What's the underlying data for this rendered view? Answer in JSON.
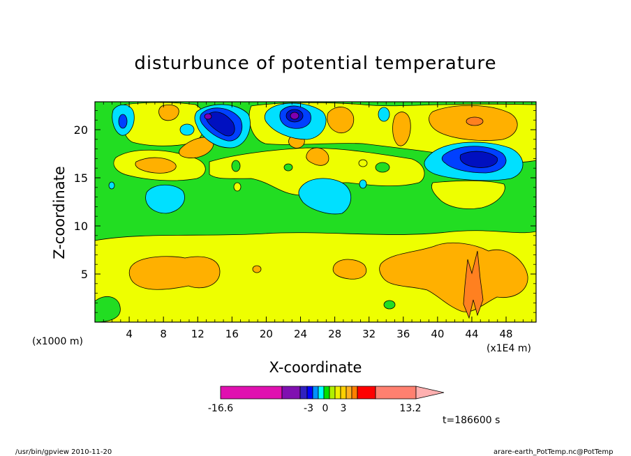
{
  "chart_data": {
    "type": "heatmap",
    "title": "disturbunce of potential temperature",
    "xlabel": "X-coordinate",
    "ylabel": "Z-coordinate",
    "x_scale_label": "(x1000 m)",
    "x_unit_label": "(x1E4 m)",
    "xticks": [
      "4",
      "8",
      "12",
      "16",
      "20",
      "24",
      "28",
      "32",
      "36",
      "40",
      "44",
      "48"
    ],
    "yticks": [
      "5",
      "10",
      "15",
      "20"
    ],
    "xlim": [
      0,
      51.5
    ],
    "ylim": [
      0,
      22.9
    ],
    "colorbar": {
      "labels": [
        "-16.6",
        "-3",
        "0",
        "3",
        "13.2"
      ],
      "colors": [
        "#e010b0",
        "#8010b0",
        "#3020c0",
        "#0000ff",
        "#0090ff",
        "#00ffff",
        "#00e000",
        "#b0f000",
        "#f0f000",
        "#ffd000",
        "#ffb020",
        "#ff8000",
        "#ff0000",
        "#ff8070",
        "#ffb0b0"
      ]
    },
    "fill_colors": {
      "cyan": "#00e0ff",
      "blue": "#0040ff",
      "navy": "#0010c0",
      "purple": "#8000b0",
      "green": "#22dd22",
      "yellow": "#eeff00",
      "light_orange": "#ffd400",
      "orange": "#ffb000",
      "dark_orange": "#ff8020"
    },
    "time_label": "t=186600 s"
  },
  "footer": {
    "left": "/usr/bin/gpview   2010-11-20",
    "right": "arare-earth_PotTemp.nc@PotTemp"
  }
}
